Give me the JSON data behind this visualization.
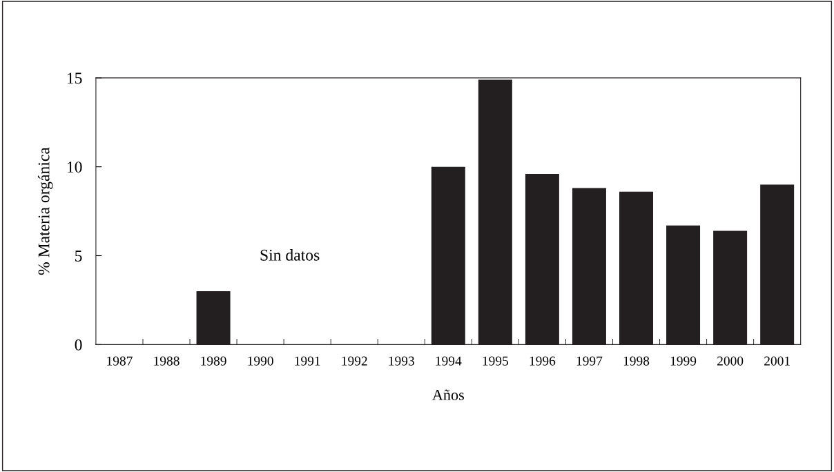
{
  "chart_data": {
    "type": "bar",
    "xlabel": "Años",
    "ylabel": "% Materia orgánica",
    "categories": [
      "1987",
      "1988",
      "1989",
      "1990",
      "1991",
      "1992",
      "1993",
      "1994",
      "1995",
      "1996",
      "1997",
      "1998",
      "1999",
      "2000",
      "2001"
    ],
    "values": [
      null,
      null,
      3.0,
      null,
      null,
      null,
      null,
      10.0,
      14.9,
      9.6,
      8.8,
      8.6,
      6.7,
      6.4,
      9.0
    ],
    "color": "#231f20",
    "ylim": [
      0,
      15
    ],
    "yticks": [
      0,
      5,
      10,
      15
    ],
    "annotations": [
      "Sin datos"
    ],
    "grid": false,
    "legend": false
  }
}
